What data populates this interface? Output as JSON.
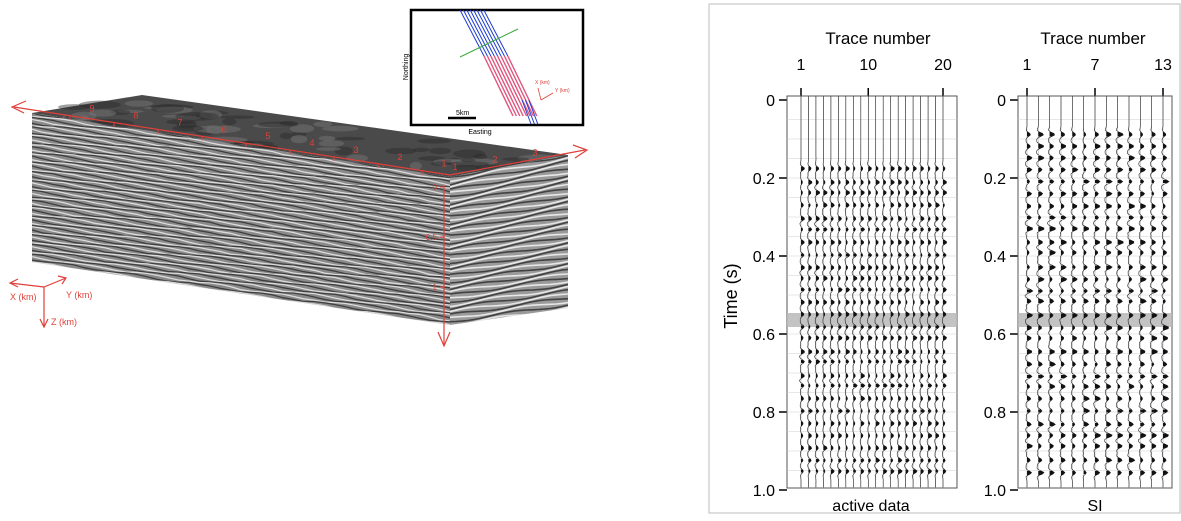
{
  "cube": {
    "x_ticks": [
      "9",
      "8",
      "7",
      "6",
      "5",
      "4",
      "3",
      "2",
      "1"
    ],
    "y_ticks": [
      "1",
      "2",
      "3"
    ],
    "z_ticks": [
      "0",
      "0.5",
      "1"
    ],
    "axis_x": "X (km)",
    "axis_y": "Y (km)",
    "axis_z": "Z (km)"
  },
  "inset_map": {
    "northing": "Northing",
    "easting": "Easting",
    "scale": "5km",
    "x_label": "X (km)",
    "y_label": "Y (km)"
  },
  "seismic": {
    "active": {
      "title": "Trace number",
      "trace_ticks": [
        "1",
        "10",
        "20"
      ],
      "caption": "active data",
      "n_traces": 20
    },
    "si": {
      "title": "Trace number",
      "trace_ticks": [
        "1",
        "7",
        "13"
      ],
      "caption": "SI",
      "n_traces": 13
    },
    "y_label": "Time (s)",
    "time_ticks": [
      "0",
      "0.2",
      "0.4",
      "0.6",
      "0.8",
      "1.0"
    ],
    "highlight_time": 0.6
  },
  "colors": {
    "axis_red": "#e0403a",
    "survey_blue": "#1f3fd0",
    "survey_pink": "#e0557f",
    "survey_green": "#3aa83a",
    "highlight_gray": "#b8b8b8"
  }
}
